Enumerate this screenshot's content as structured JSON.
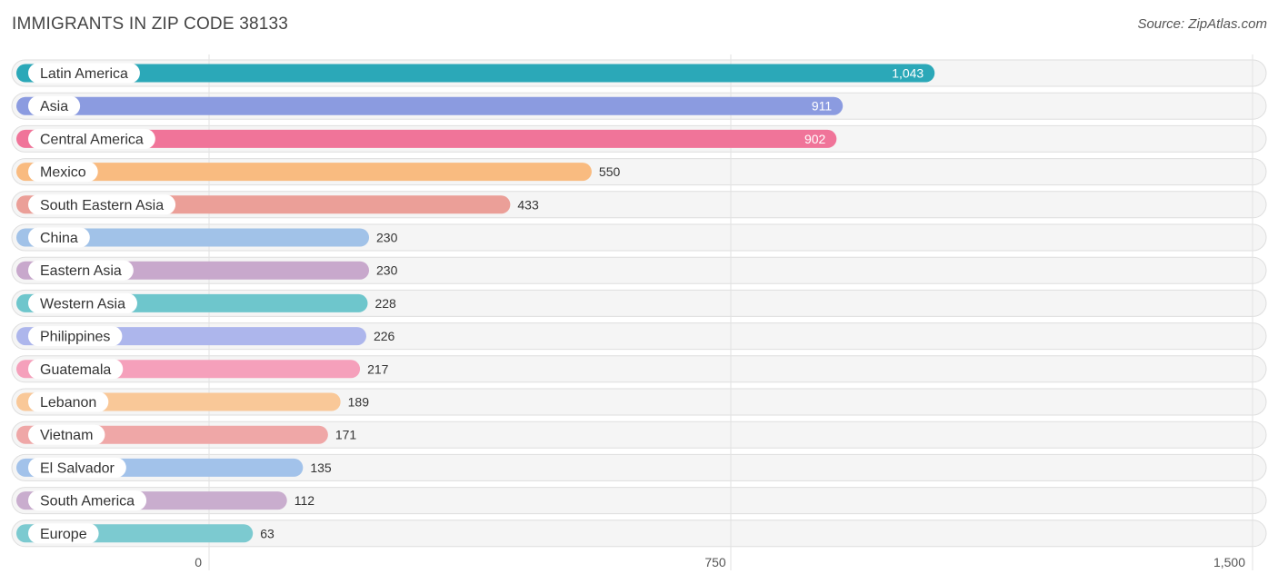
{
  "header": {
    "title": "IMMIGRANTS IN ZIP CODE 38133",
    "source": "Source: ZipAtlas.com"
  },
  "chart_data": {
    "type": "bar",
    "orientation": "horizontal",
    "title": "IMMIGRANTS IN ZIP CODE 38133",
    "xlim": [
      0,
      1500
    ],
    "ticks": [
      0,
      750,
      1500
    ],
    "tick_labels": [
      "0",
      "750",
      "1,500"
    ],
    "grid": true,
    "categories": [
      "Latin America",
      "Asia",
      "Central America",
      "Mexico",
      "South Eastern Asia",
      "China",
      "Eastern Asia",
      "Western Asia",
      "Philippines",
      "Guatemala",
      "Lebanon",
      "Vietnam",
      "El Salvador",
      "South America",
      "Europe"
    ],
    "values": [
      1043,
      911,
      902,
      550,
      433,
      230,
      230,
      228,
      226,
      217,
      189,
      171,
      135,
      112,
      63
    ],
    "value_labels": [
      "1,043",
      "911",
      "902",
      "550",
      "433",
      "230",
      "230",
      "228",
      "226",
      "217",
      "189",
      "171",
      "135",
      "112",
      "63"
    ],
    "colors": [
      "#2ba8b8",
      "#8b9be0",
      "#f07499",
      "#f9bb80",
      "#eb9f98",
      "#a1c2e8",
      "#c8a8cc",
      "#6ec6cc",
      "#adb6ec",
      "#f5a0bb",
      "#f9c898",
      "#efa7a7",
      "#a2c2ea",
      "#c9adce",
      "#7ccad0"
    ]
  }
}
